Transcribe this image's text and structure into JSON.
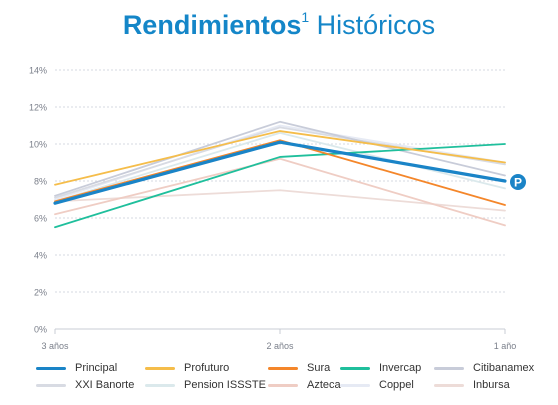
{
  "title": {
    "bold": "Rendimientos",
    "sup": "1",
    "rest": " Históricos"
  },
  "colors": {
    "Principal": "#1a84c7",
    "Profuturo": "#f5bd4a",
    "Sura": "#f4862a",
    "Invercap": "#1fbf9c",
    "Citibanamex": "#c8ccd9",
    "XXI Banorte": "#d8dbe3",
    "Pension ISSSTE": "#dbe9ec",
    "Azteca": "#efcdc4",
    "Coppel": "#e6eaf4",
    "Inbursa": "#eddcd8"
  },
  "marker": {
    "icon": "principal-logo-icon",
    "glyph": "P",
    "color": "#1a84c7"
  },
  "chart_data": {
    "type": "line",
    "categories": [
      "3 años",
      "2 años",
      "1 año"
    ],
    "y_ticks": [
      "0%",
      "2%",
      "4%",
      "6%",
      "8%",
      "10%",
      "12%",
      "14%"
    ],
    "ylim": [
      0,
      14
    ],
    "grid": true,
    "legend_position": "bottom",
    "series": [
      {
        "name": "Inbursa",
        "values": [
          6.9,
          7.5,
          6.4
        ]
      },
      {
        "name": "Coppel",
        "values": [
          7.0,
          11.0,
          9.0
        ]
      },
      {
        "name": "Azteca",
        "values": [
          6.2,
          9.2,
          5.6
        ]
      },
      {
        "name": "Pension ISSSTE",
        "values": [
          6.9,
          10.6,
          7.6
        ]
      },
      {
        "name": "XXI Banorte",
        "values": [
          7.1,
          10.9,
          8.9
        ]
      },
      {
        "name": "Citibanamex",
        "values": [
          7.2,
          11.2,
          8.3
        ]
      },
      {
        "name": "Invercap",
        "values": [
          5.5,
          9.3,
          10.0
        ]
      },
      {
        "name": "Sura",
        "values": [
          6.9,
          10.2,
          6.7
        ]
      },
      {
        "name": "Profuturo",
        "values": [
          7.8,
          10.7,
          9.0
        ]
      },
      {
        "name": "Principal",
        "values": [
          6.8,
          10.1,
          8.0
        ]
      }
    ],
    "legend": [
      "Principal",
      "Profuturo",
      "Sura",
      "Invercap",
      "Citibanamex",
      "XXI Banorte",
      "Pension ISSSTE",
      "Azteca",
      "Coppel",
      "Inbursa"
    ]
  }
}
